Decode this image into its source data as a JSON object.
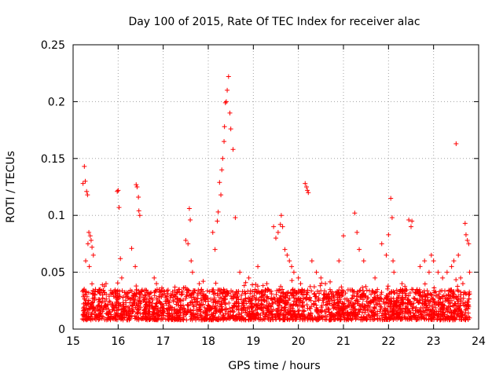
{
  "chart_data": {
    "type": "scatter",
    "title": "Day 100 of 2015, Rate Of TEC Index for receiver alac",
    "xlabel": "GPS time / hours",
    "ylabel": "ROTI / TECUs",
    "xlim": [
      15,
      24
    ],
    "ylim": [
      0,
      0.25
    ],
    "x_ticks": [
      15,
      16,
      17,
      18,
      19,
      20,
      21,
      22,
      23,
      24
    ],
    "x_tick_labels": [
      "15",
      "16",
      "17",
      "18",
      "19",
      "20",
      "21",
      "22",
      "23",
      "24"
    ],
    "y_ticks": [
      0,
      0.05,
      0.1,
      0.15,
      0.2,
      0.25
    ],
    "y_tick_labels": [
      "0",
      "0.05",
      "0.1",
      "0.15",
      "0.2",
      "0.25"
    ],
    "grid": true,
    "marker": "+",
    "marker_color": "#ff0000",
    "series": [
      {
        "name": "ROTI",
        "baseline_x_range": [
          15.2,
          23.8
        ],
        "baseline_y_range": [
          0.008,
          0.035
        ],
        "x": [
          15.22,
          15.25,
          15.27,
          15.3,
          15.32,
          15.35,
          15.38,
          15.4,
          15.42,
          15.45,
          15.28,
          15.33,
          15.36,
          15.98,
          16.0,
          16.02,
          16.05,
          16.08,
          16.3,
          16.4,
          16.42,
          16.45,
          16.46,
          16.48,
          16.38,
          16.8,
          16.85,
          17.5,
          17.55,
          17.58,
          17.6,
          17.62,
          17.65,
          17.8,
          17.85,
          18.1,
          18.15,
          18.2,
          18.22,
          18.25,
          18.28,
          18.3,
          18.32,
          18.35,
          18.36,
          18.38,
          18.4,
          18.42,
          18.45,
          18.48,
          18.5,
          18.55,
          18.6,
          18.7,
          18.9,
          19.1,
          19.3,
          19.45,
          19.5,
          19.55,
          19.6,
          19.62,
          19.65,
          19.7,
          19.75,
          19.8,
          19.85,
          19.9,
          20.0,
          20.05,
          20.15,
          20.18,
          20.2,
          20.22,
          20.3,
          20.4,
          20.5,
          20.6,
          20.9,
          21.0,
          21.25,
          21.3,
          21.35,
          21.45,
          21.7,
          21.85,
          21.95,
          22.0,
          22.05,
          22.08,
          22.1,
          22.12,
          22.3,
          22.45,
          22.5,
          22.52,
          22.7,
          22.8,
          22.9,
          22.95,
          23.0,
          23.1,
          23.2,
          23.3,
          23.4,
          23.45,
          23.5,
          23.55,
          23.6,
          23.65,
          23.7,
          23.72,
          23.75,
          23.78,
          23.8
        ],
        "y": [
          0.128,
          0.143,
          0.13,
          0.121,
          0.118,
          0.085,
          0.082,
          0.078,
          0.072,
          0.065,
          0.06,
          0.075,
          0.055,
          0.121,
          0.122,
          0.107,
          0.062,
          0.045,
          0.071,
          0.127,
          0.125,
          0.116,
          0.104,
          0.1,
          0.055,
          0.045,
          0.04,
          0.078,
          0.075,
          0.106,
          0.096,
          0.06,
          0.05,
          0.04,
          0.035,
          0.085,
          0.07,
          0.095,
          0.103,
          0.129,
          0.118,
          0.14,
          0.15,
          0.165,
          0.178,
          0.199,
          0.2,
          0.21,
          0.222,
          0.19,
          0.176,
          0.158,
          0.098,
          0.05,
          0.045,
          0.055,
          0.04,
          0.09,
          0.08,
          0.085,
          0.092,
          0.1,
          0.09,
          0.07,
          0.065,
          0.06,
          0.055,
          0.05,
          0.045,
          0.04,
          0.128,
          0.125,
          0.122,
          0.12,
          0.06,
          0.05,
          0.045,
          0.04,
          0.06,
          0.082,
          0.102,
          0.085,
          0.07,
          0.06,
          0.045,
          0.075,
          0.065,
          0.083,
          0.115,
          0.098,
          0.06,
          0.05,
          0.04,
          0.096,
          0.09,
          0.095,
          0.055,
          0.06,
          0.05,
          0.065,
          0.06,
          0.05,
          0.045,
          0.05,
          0.055,
          0.06,
          0.163,
          0.065,
          0.045,
          0.04,
          0.093,
          0.083,
          0.078,
          0.075,
          0.05
        ]
      }
    ]
  }
}
